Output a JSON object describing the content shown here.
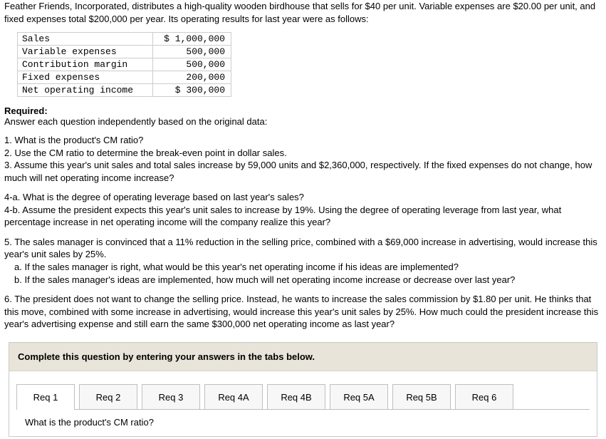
{
  "intro": "Feather Friends, Incorporated, distributes a high-quality wooden birdhouse that sells for $40 per unit. Variable expenses are $20.00 per unit, and fixed expenses total $200,000 per year. Its operating results for last year were as follows:",
  "income": [
    {
      "label": "Sales",
      "value": "$ 1,000,000"
    },
    {
      "label": "Variable expenses",
      "value": "500,000"
    },
    {
      "label": "Contribution margin",
      "value": "500,000"
    },
    {
      "label": "Fixed expenses",
      "value": "200,000"
    },
    {
      "label": "Net operating income",
      "value": "$ 300,000"
    }
  ],
  "required_label": "Required:",
  "required_sub": "Answer each question independently based on the original data:",
  "q1": "1. What is the product's CM ratio?",
  "q2": "2. Use the CM ratio to determine the break-even point in dollar sales.",
  "q3": "3. Assume this year's unit sales and total sales increase by 59,000 units and $2,360,000, respectively. If the fixed expenses do not change, how much will net operating income increase?",
  "q4a": "4-a. What is the degree of operating leverage based on last year's sales?",
  "q4b": "4-b. Assume the president expects this year's unit sales to increase by 19%. Using the degree of operating leverage from last year, what percentage increase in net operating income will the company realize this year?",
  "q5_lead": "5. The sales manager is convinced that a 11% reduction in the selling price, combined with a $69,000 increase in advertising, would increase this year's unit sales by 25%.",
  "q5a": "a. If the sales manager is right, what would be this year's net operating income if his ideas are implemented?",
  "q5b": "b. If the sales manager's ideas are implemented, how much will net operating income increase or decrease over last year?",
  "q6": "6. The president does not want to change the selling price. Instead, he wants to increase the sales commission by $1.80 per unit. He thinks that this move, combined with some increase in advertising, would increase this year's unit sales by 25%. How much could the president increase this year's advertising expense and still earn the same $300,000 net operating income as last year?",
  "answer_header": "Complete this question by entering your answers in the tabs below.",
  "tabs": {
    "t1": "Req 1",
    "t2": "Req 2",
    "t3": "Req 3",
    "t4a": "Req 4A",
    "t4b": "Req 4B",
    "t5a": "Req 5A",
    "t5b": "Req 5B",
    "t6": "Req 6"
  },
  "active_tab_question": "What is the product's CM ratio?"
}
